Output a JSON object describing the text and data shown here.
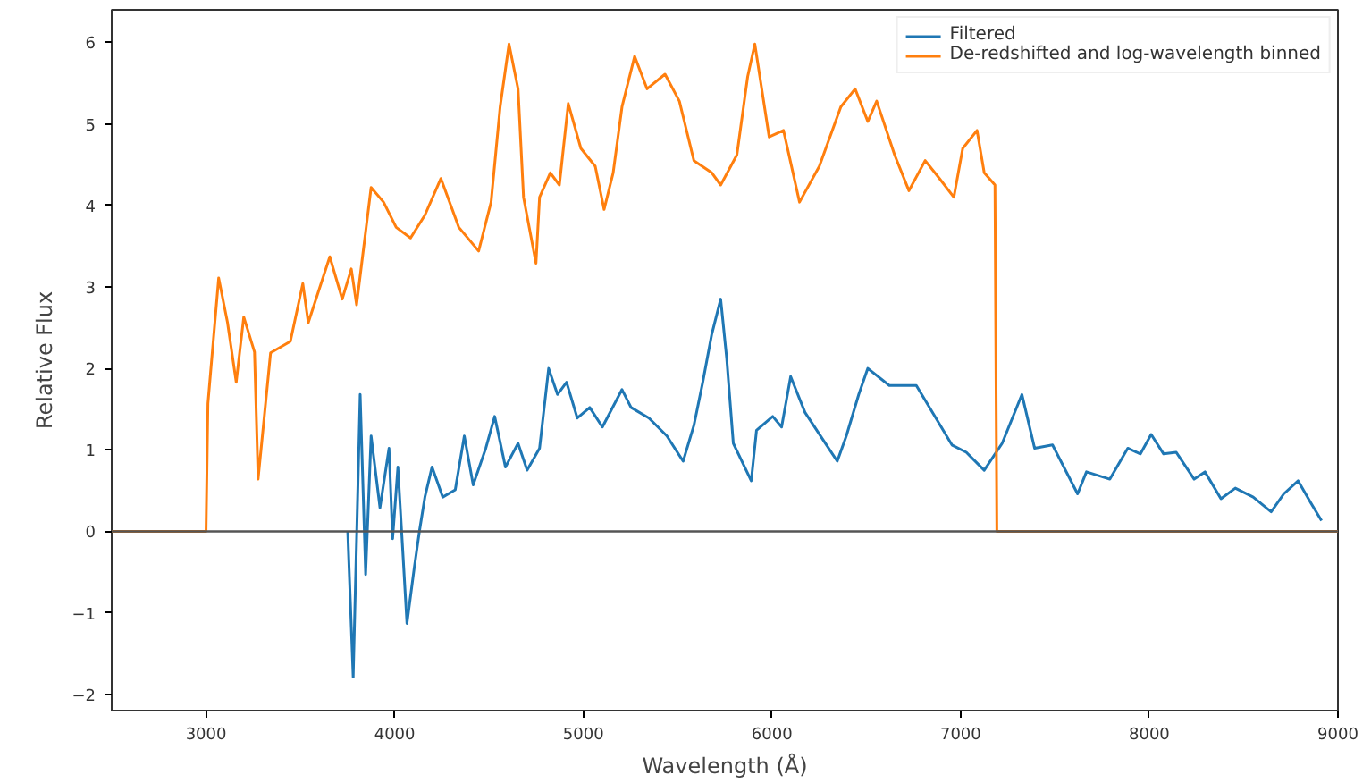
{
  "chart_data": {
    "type": "line",
    "xlabel": "Wavelength (Å)",
    "ylabel": "Relative Flux",
    "xlim": [
      2500,
      9000
    ],
    "ylim": [
      -2.2,
      6.4
    ],
    "xticks": [
      3000,
      4000,
      5000,
      6000,
      7000,
      8000,
      9000
    ],
    "yticks": [
      -2,
      -1,
      0,
      1,
      2,
      3,
      4,
      5,
      6
    ],
    "grid": false,
    "legend": "top right",
    "line_style": "solid",
    "marker": "none",
    "ref_lines": [
      {
        "axis": "y",
        "value": 0,
        "color": "#555555"
      }
    ],
    "series": [
      {
        "name": "Filtered",
        "color": "#1f77b4",
        "x": [
          3751,
          3780,
          3817,
          3846,
          3875,
          3922,
          3970,
          3989,
          4017,
          4065,
          4103,
          4131,
          4160,
          4198,
          4255,
          4321,
          4369,
          4416,
          4483,
          4530,
          4587,
          4654,
          4702,
          4768,
          4816,
          4863,
          4911,
          4968,
          5034,
          5101,
          5205,
          5253,
          5348,
          5443,
          5529,
          5586,
          5633,
          5680,
          5728,
          5760,
          5795,
          5890,
          5918,
          6004,
          6051,
          6099,
          6175,
          6289,
          6346,
          6394,
          6460,
          6508,
          6622,
          6765,
          6869,
          6954,
          7030,
          7125,
          7220,
          7325,
          7392,
          7487,
          7620,
          7667,
          7791,
          7886,
          7953,
          8010,
          8076,
          8143,
          8238,
          8295,
          8380,
          8456,
          8551,
          8646,
          8713,
          8789,
          8856,
          8913
        ],
        "values": [
          0,
          -1.79,
          1.68,
          -0.53,
          1.17,
          0.29,
          1.02,
          -0.09,
          0.79,
          -1.13,
          -0.46,
          0,
          0.42,
          0.79,
          0.42,
          0.51,
          1.17,
          0.57,
          1.02,
          1.41,
          0.79,
          1.08,
          0.75,
          1.02,
          2.0,
          1.68,
          1.83,
          1.39,
          1.52,
          1.28,
          1.74,
          1.52,
          1.39,
          1.17,
          0.86,
          1.3,
          1.83,
          2.41,
          2.85,
          2.12,
          1.08,
          0.62,
          1.24,
          1.41,
          1.28,
          1.9,
          1.46,
          1.06,
          0.86,
          1.17,
          1.68,
          2.0,
          1.79,
          1.79,
          1.39,
          1.06,
          0.97,
          0.75,
          1.08,
          1.68,
          1.02,
          1.06,
          0.46,
          0.73,
          0.64,
          1.02,
          0.95,
          1.19,
          0.95,
          0.97,
          0.64,
          0.73,
          0.4,
          0.53,
          0.42,
          0.24,
          0.46,
          0.62,
          0.35,
          0.13
        ]
      },
      {
        "name": "De-redshifted and log-wavelength binned",
        "color": "#ff7f0e",
        "x": [
          2500,
          3000,
          3010,
          3067,
          3114,
          3160,
          3200,
          3257,
          3276,
          3342,
          3447,
          3513,
          3542,
          3656,
          3722,
          3770,
          3798,
          3875,
          3941,
          4008,
          4084,
          4160,
          4245,
          4340,
          4445,
          4511,
          4559,
          4606,
          4654,
          4683,
          4749,
          4768,
          4825,
          4873,
          4920,
          4987,
          5063,
          5110,
          5158,
          5205,
          5272,
          5338,
          5433,
          5509,
          5586,
          5681,
          5728,
          5814,
          5871,
          5909,
          5985,
          6061,
          6146,
          6251,
          6365,
          6441,
          6508,
          6555,
          6650,
          6726,
          6812,
          6888,
          6964,
          7011,
          7087,
          7125,
          7182,
          7192,
          9000
        ],
        "values": [
          0,
          0,
          1.57,
          3.11,
          2.56,
          1.83,
          2.63,
          2.2,
          0.64,
          2.19,
          2.33,
          3.04,
          2.56,
          3.37,
          2.85,
          3.22,
          2.78,
          4.22,
          4.04,
          3.73,
          3.6,
          3.88,
          4.33,
          3.73,
          3.44,
          4.04,
          5.21,
          5.98,
          5.43,
          4.1,
          3.29,
          4.1,
          4.4,
          4.25,
          5.25,
          4.7,
          4.48,
          3.95,
          4.4,
          5.21,
          5.83,
          5.43,
          5.61,
          5.28,
          4.55,
          4.4,
          4.25,
          4.62,
          5.58,
          5.98,
          4.84,
          4.92,
          4.04,
          4.48,
          5.21,
          5.43,
          5.03,
          5.28,
          4.62,
          4.18,
          4.55,
          4.33,
          4.1,
          4.7,
          4.92,
          4.4,
          4.25,
          0,
          0
        ]
      }
    ]
  }
}
